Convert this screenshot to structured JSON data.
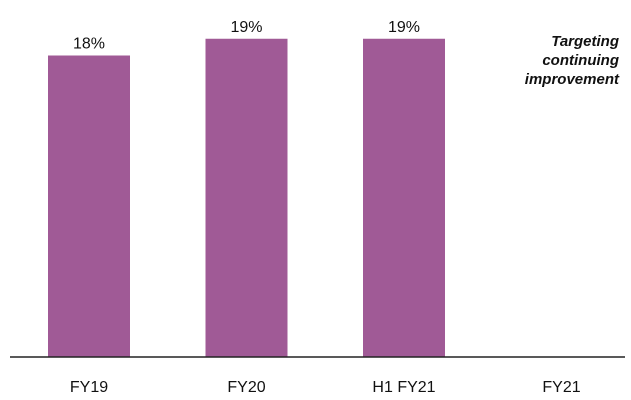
{
  "colors": {
    "bar": "#a05a96",
    "axis": "#222222",
    "text": "#111111"
  },
  "chart_data": {
    "type": "bar",
    "categories": [
      "FY19",
      "FY20",
      "H1 FY21",
      "FY21"
    ],
    "values": [
      18,
      19,
      19,
      null
    ],
    "value_labels": [
      "18%",
      "19%",
      "19%",
      ""
    ],
    "title": "",
    "xlabel": "",
    "ylabel": "",
    "ylim": [
      0,
      20
    ],
    "grid": false,
    "annotation": "Targeting\ncontinuing\nimprovement"
  }
}
